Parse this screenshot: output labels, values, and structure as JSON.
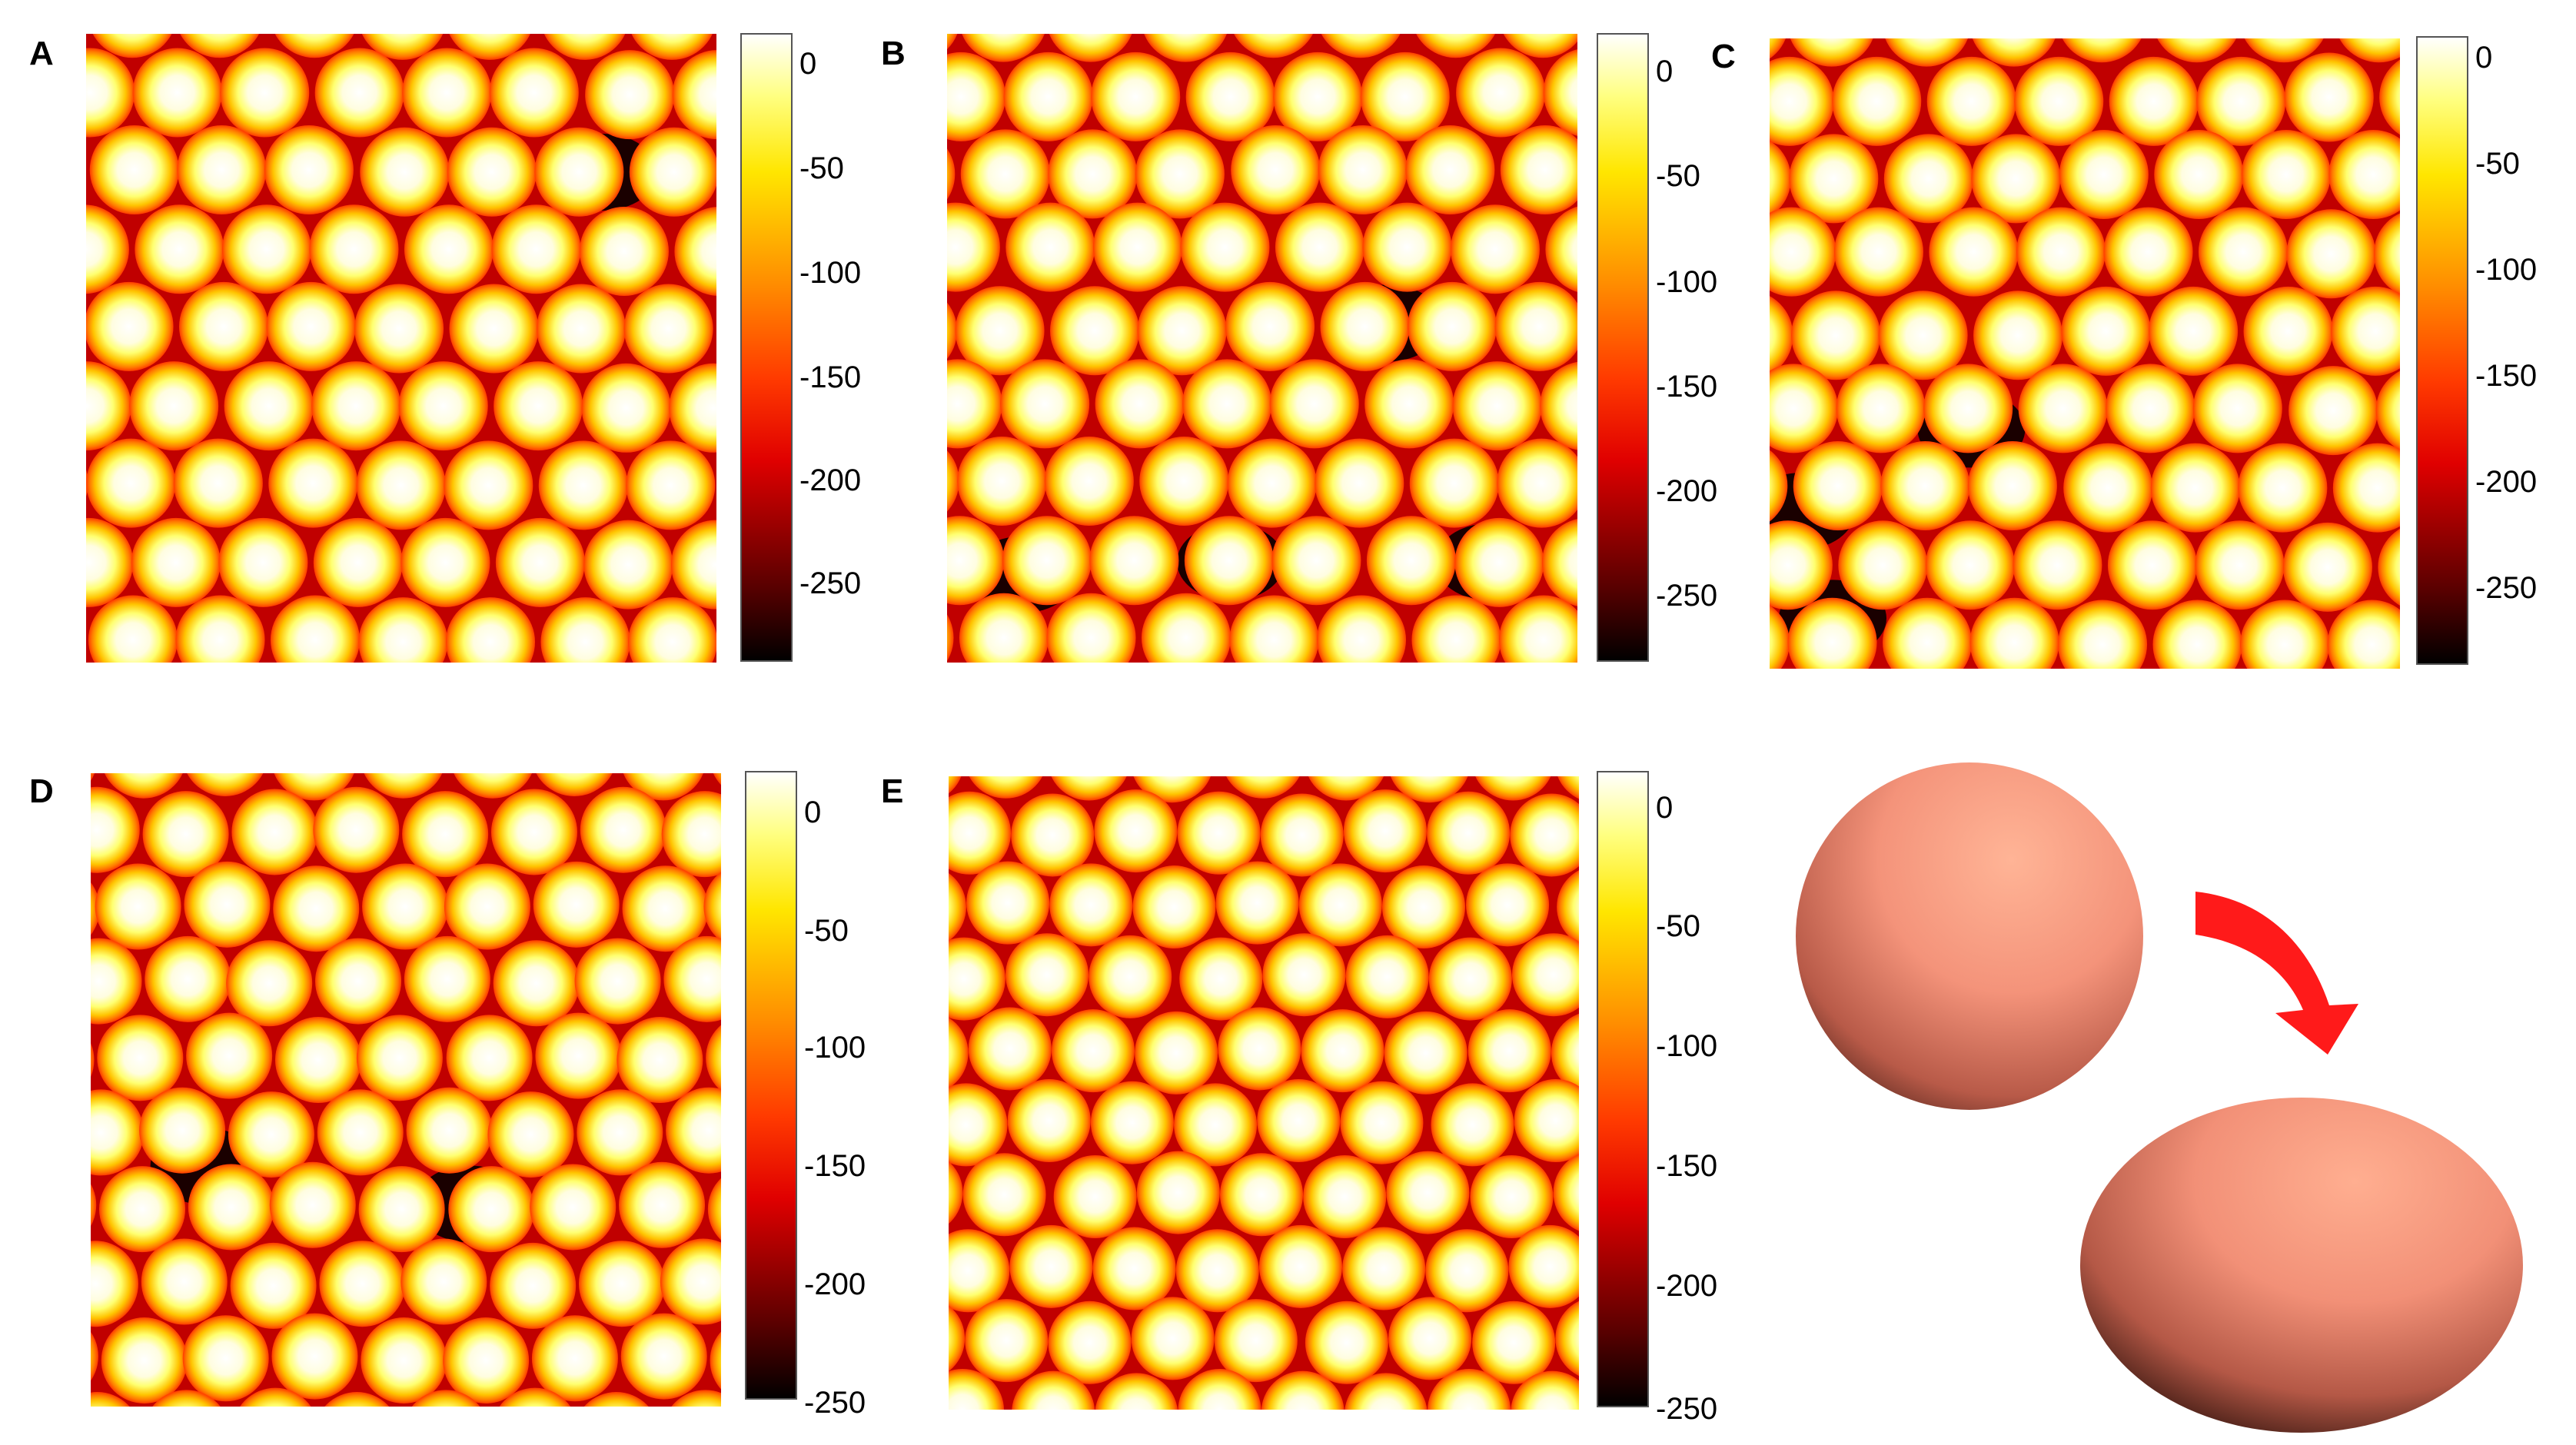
{
  "panels": [
    {
      "label": "A",
      "ticks": [
        "0",
        "-50",
        "-100",
        "-150",
        "-200",
        "-250"
      ]
    },
    {
      "label": "B",
      "ticks": [
        "0",
        "-50",
        "-100",
        "-150",
        "-200",
        "-250"
      ]
    },
    {
      "label": "C",
      "ticks": [
        "0",
        "-50",
        "-100",
        "-150",
        "-200",
        "-250"
      ]
    },
    {
      "label": "D",
      "ticks": [
        "0",
        "-50",
        "-100",
        "-150",
        "-200",
        "-250"
      ]
    },
    {
      "label": "E",
      "ticks": [
        "0",
        "-50",
        "-100",
        "-150",
        "-200",
        "-250"
      ]
    }
  ],
  "colormap": [
    "#000000",
    "#5a0000",
    "#d40000",
    "#ff3a00",
    "#ff8c00",
    "#ffd200",
    "#ffff60",
    "#ffffff"
  ],
  "particle_color": "#f4937a",
  "arrow_color": "#ff1a1a"
}
